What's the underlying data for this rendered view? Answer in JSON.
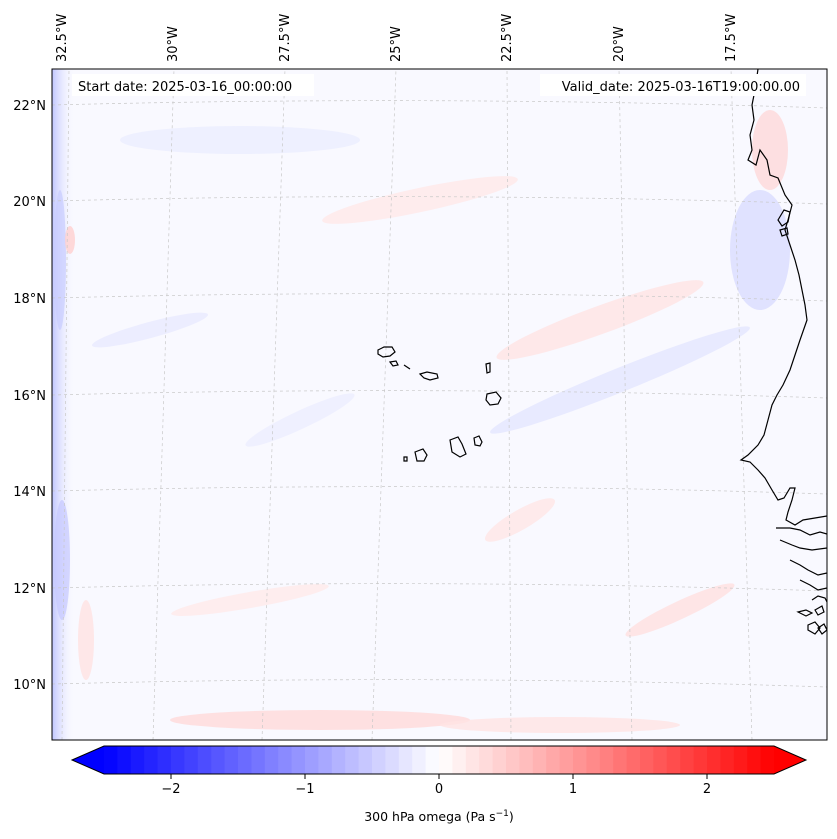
{
  "map": {
    "start_label": "Start date: 2025-03-16_00:00:00",
    "valid_label": "Valid_date: 2025-03-16T19:00:00.00",
    "lon_ticks": [
      "32.5°W",
      "30°W",
      "27.5°W",
      "25°W",
      "22.5°W",
      "20°W",
      "17.5°W"
    ],
    "lat_ticks": [
      "22°N",
      "20°N",
      "18°N",
      "16°N",
      "14°N",
      "12°N",
      "10°N"
    ]
  },
  "colorbar": {
    "ticks": [
      "−2",
      "−1",
      "0",
      "1",
      "2"
    ],
    "tick_values": [
      -2,
      -1,
      0,
      1,
      2
    ],
    "range": [
      -2.5,
      2.5
    ],
    "label_main": "300 hPa omega (Pa s",
    "label_sup": "−1",
    "label_end": ")",
    "colormap": "bwr",
    "low_color": "#0000ff",
    "mid_color": "#ffffff",
    "high_color": "#ff0000"
  }
}
